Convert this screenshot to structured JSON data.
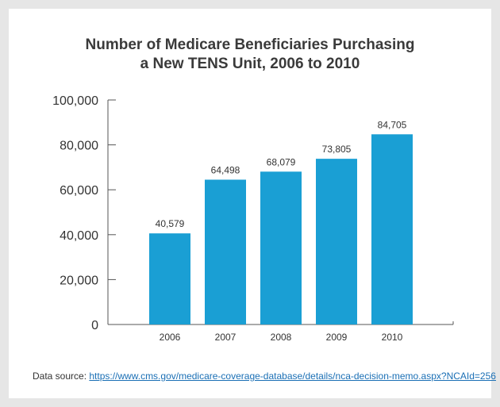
{
  "chart_data": {
    "type": "bar",
    "title_lines": [
      "Number of Medicare Beneficiaries Purchasing",
      "a New TENS Unit, 2006 to 2010"
    ],
    "categories": [
      "2006",
      "2007",
      "2008",
      "2009",
      "2010"
    ],
    "values": [
      40579,
      64498,
      68079,
      73805,
      84705
    ],
    "value_labels": [
      "40,579",
      "64,498",
      "68,079",
      "73,805",
      "84,705"
    ],
    "y_ticks": [
      0,
      20000,
      40000,
      60000,
      80000,
      100000
    ],
    "y_tick_labels": [
      "0",
      "20,000",
      "40,000",
      "60,000",
      "80,000",
      "100,000"
    ],
    "ylim": [
      0,
      100000
    ],
    "xlabel": "",
    "ylabel": "",
    "grid": false,
    "legend": "none",
    "bar_color": "#1a9fd4"
  },
  "source": {
    "prefix": "Data source: ",
    "link_text": "https://www.cms.gov/medicare-coverage-database/details/nca-decision-memo.aspx?NCAId=256"
  }
}
